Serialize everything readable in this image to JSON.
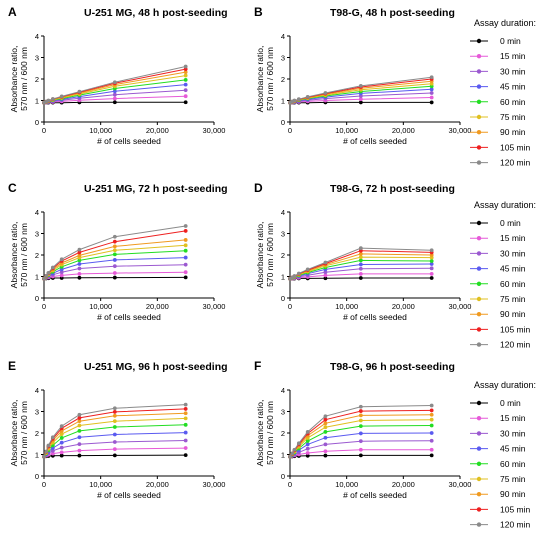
{
  "figure": {
    "legend_title": "Assay duration:",
    "legend_placement": "right",
    "series_styles": [
      {
        "name": "0 min",
        "color": "#000000"
      },
      {
        "name": "15 min",
        "color": "#e65ad8"
      },
      {
        "name": "30 min",
        "color": "#9b59d0"
      },
      {
        "name": "45 min",
        "color": "#5a5af0"
      },
      {
        "name": "60 min",
        "color": "#22dd22"
      },
      {
        "name": "75 min",
        "color": "#e0c020"
      },
      {
        "name": "90 min",
        "color": "#f09a20"
      },
      {
        "name": "105 min",
        "color": "#ee2020"
      },
      {
        "name": "120 min",
        "color": "#8a8a8a"
      }
    ]
  },
  "chart_data": [
    {
      "panel": "A",
      "type": "line",
      "title": "U-251 MG, 48 h post-seeding",
      "xlabel": "# of cells seeded",
      "ylabel": [
        "Absorbance ratio,",
        "570 nm / 600 nm"
      ],
      "xlim": [
        0,
        30000
      ],
      "ylim": [
        0,
        4
      ],
      "xticks": [
        "0",
        "10,000",
        "20,000",
        "30,000"
      ],
      "yticks": [
        "0",
        "1",
        "2",
        "3",
        "4"
      ],
      "x": [
        0,
        390,
        780,
        1560,
        3125,
        6250,
        12500,
        25000
      ],
      "series": [
        {
          "name": "0 min",
          "values": [
            0.9,
            0.9,
            0.9,
            0.9,
            0.9,
            0.91,
            0.92,
            0.92
          ]
        },
        {
          "name": "15 min",
          "values": [
            0.9,
            0.91,
            0.92,
            0.93,
            0.96,
            1.01,
            1.09,
            1.2
          ]
        },
        {
          "name": "30 min",
          "values": [
            0.9,
            0.91,
            0.93,
            0.96,
            1.01,
            1.1,
            1.27,
            1.48
          ]
        },
        {
          "name": "45 min",
          "values": [
            0.9,
            0.92,
            0.95,
            0.99,
            1.05,
            1.18,
            1.43,
            1.74
          ]
        },
        {
          "name": "60 min",
          "values": [
            0.9,
            0.93,
            0.96,
            1.01,
            1.09,
            1.25,
            1.56,
            1.96
          ]
        },
        {
          "name": "75 min",
          "values": [
            0.9,
            0.93,
            0.97,
            1.03,
            1.12,
            1.3,
            1.66,
            2.16
          ]
        },
        {
          "name": "90 min",
          "values": [
            0.9,
            0.94,
            0.98,
            1.05,
            1.15,
            1.35,
            1.74,
            2.32
          ]
        },
        {
          "name": "105 min",
          "values": [
            0.9,
            0.94,
            0.99,
            1.06,
            1.17,
            1.38,
            1.8,
            2.46
          ]
        },
        {
          "name": "120 min",
          "values": [
            0.9,
            0.95,
            1.0,
            1.07,
            1.19,
            1.41,
            1.85,
            2.58
          ]
        }
      ]
    },
    {
      "panel": "B",
      "type": "line",
      "title": "T98-G, 48 h post-seeding",
      "xlabel": "# of cells seeded",
      "ylabel": [
        "Absorbance ratio,",
        "570 nm / 600 nm"
      ],
      "xlim": [
        0,
        30000
      ],
      "ylim": [
        0,
        4
      ],
      "xticks": [
        "0",
        "10,000",
        "20,000",
        "30,000"
      ],
      "yticks": [
        "0",
        "1",
        "2",
        "3",
        "4"
      ],
      "x": [
        0,
        390,
        780,
        1560,
        3125,
        6250,
        12500,
        25000
      ],
      "series": [
        {
          "name": "0 min",
          "values": [
            0.9,
            0.9,
            0.9,
            0.9,
            0.9,
            0.91,
            0.91,
            0.91
          ]
        },
        {
          "name": "15 min",
          "values": [
            0.9,
            0.91,
            0.92,
            0.93,
            0.96,
            1.0,
            1.06,
            1.14
          ]
        },
        {
          "name": "30 min",
          "values": [
            0.9,
            0.92,
            0.93,
            0.96,
            1.01,
            1.09,
            1.21,
            1.35
          ]
        },
        {
          "name": "45 min",
          "values": [
            0.9,
            0.92,
            0.95,
            0.99,
            1.05,
            1.16,
            1.33,
            1.52
          ]
        },
        {
          "name": "60 min",
          "values": [
            0.9,
            0.93,
            0.96,
            1.01,
            1.09,
            1.21,
            1.42,
            1.66
          ]
        },
        {
          "name": "75 min",
          "values": [
            0.9,
            0.93,
            0.97,
            1.03,
            1.11,
            1.25,
            1.5,
            1.78
          ]
        },
        {
          "name": "90 min",
          "values": [
            0.9,
            0.94,
            0.98,
            1.04,
            1.13,
            1.29,
            1.57,
            1.9
          ]
        },
        {
          "name": "105 min",
          "values": [
            0.9,
            0.94,
            0.99,
            1.05,
            1.15,
            1.32,
            1.63,
            2.0
          ]
        },
        {
          "name": "120 min",
          "values": [
            0.9,
            0.95,
            1.0,
            1.06,
            1.17,
            1.35,
            1.68,
            2.08
          ]
        }
      ]
    },
    {
      "panel": "C",
      "type": "line",
      "title": "U-251 MG, 72 h post-seeding",
      "xlabel": "# of cells seeded",
      "ylabel": [
        "Absorbance ratio,",
        "570 nm / 600 nm"
      ],
      "xlim": [
        0,
        30000
      ],
      "ylim": [
        0,
        4
      ],
      "xticks": [
        "0",
        "10,000",
        "20,000",
        "30,000"
      ],
      "yticks": [
        "0",
        "1",
        "2",
        "3",
        "4"
      ],
      "x": [
        0,
        390,
        780,
        1560,
        3125,
        6250,
        12500,
        25000
      ],
      "series": [
        {
          "name": "0 min",
          "values": [
            0.9,
            0.91,
            0.92,
            0.93,
            0.93,
            0.94,
            0.95,
            0.96
          ]
        },
        {
          "name": "15 min",
          "values": [
            0.9,
            0.93,
            0.96,
            1.0,
            1.05,
            1.12,
            1.16,
            1.2
          ]
        },
        {
          "name": "30 min",
          "values": [
            0.9,
            0.95,
            1.0,
            1.08,
            1.2,
            1.37,
            1.48,
            1.55
          ]
        },
        {
          "name": "45 min",
          "values": [
            0.9,
            0.97,
            1.04,
            1.15,
            1.33,
            1.58,
            1.77,
            1.88
          ]
        },
        {
          "name": "60 min",
          "values": [
            0.9,
            0.98,
            1.07,
            1.22,
            1.45,
            1.75,
            2.03,
            2.2
          ]
        },
        {
          "name": "75 min",
          "values": [
            0.9,
            1.0,
            1.1,
            1.28,
            1.55,
            1.88,
            2.22,
            2.45
          ]
        },
        {
          "name": "90 min",
          "values": [
            0.9,
            1.01,
            1.13,
            1.33,
            1.63,
            1.98,
            2.4,
            2.7
          ]
        },
        {
          "name": "105 min",
          "values": [
            0.9,
            1.02,
            1.15,
            1.38,
            1.72,
            2.12,
            2.62,
            3.12
          ]
        },
        {
          "name": "120 min",
          "values": [
            0.9,
            1.03,
            1.17,
            1.42,
            1.8,
            2.25,
            2.85,
            3.35
          ]
        }
      ]
    },
    {
      "panel": "D",
      "type": "line",
      "title": "T98-G, 72 h post-seeding",
      "xlabel": "# of cells seeded",
      "ylabel": [
        "Absorbance ratio,",
        "570 nm / 600 nm"
      ],
      "xlim": [
        0,
        30000
      ],
      "ylim": [
        0,
        4
      ],
      "xticks": [
        "0",
        "10,000",
        "20,000",
        "30,000"
      ],
      "yticks": [
        "0",
        "1",
        "2",
        "3",
        "4"
      ],
      "x": [
        0,
        390,
        780,
        1560,
        3125,
        6250,
        12500,
        25000
      ],
      "series": [
        {
          "name": "0 min",
          "values": [
            0.9,
            0.9,
            0.9,
            0.91,
            0.91,
            0.92,
            0.93,
            0.93
          ]
        },
        {
          "name": "15 min",
          "values": [
            0.9,
            0.91,
            0.92,
            0.94,
            0.98,
            1.05,
            1.12,
            1.12
          ]
        },
        {
          "name": "30 min",
          "values": [
            0.9,
            0.92,
            0.94,
            0.98,
            1.06,
            1.2,
            1.36,
            1.38
          ]
        },
        {
          "name": "45 min",
          "values": [
            0.9,
            0.93,
            0.96,
            1.02,
            1.13,
            1.33,
            1.56,
            1.58
          ]
        },
        {
          "name": "60 min",
          "values": [
            0.9,
            0.93,
            0.97,
            1.05,
            1.18,
            1.42,
            1.75,
            1.72
          ]
        },
        {
          "name": "75 min",
          "values": [
            0.9,
            0.94,
            0.99,
            1.08,
            1.23,
            1.5,
            1.9,
            1.88
          ]
        },
        {
          "name": "90 min",
          "values": [
            0.9,
            0.94,
            1.0,
            1.1,
            1.27,
            1.55,
            2.05,
            2.0
          ]
        },
        {
          "name": "105 min",
          "values": [
            0.9,
            0.95,
            1.01,
            1.12,
            1.3,
            1.6,
            2.2,
            2.12
          ]
        },
        {
          "name": "120 min",
          "values": [
            0.9,
            0.95,
            1.02,
            1.14,
            1.33,
            1.65,
            2.32,
            2.22
          ]
        }
      ]
    },
    {
      "panel": "E",
      "type": "line",
      "title": "U-251 MG, 96 h post-seeding",
      "xlabel": "# of cells seeded",
      "ylabel": [
        "Absorbance ratio,",
        "570 nm / 600 nm"
      ],
      "xlim": [
        0,
        30000
      ],
      "ylim": [
        0,
        4
      ],
      "xticks": [
        "0",
        "10,000",
        "20,000",
        "30,000"
      ],
      "yticks": [
        "0",
        "1",
        "2",
        "3",
        "4"
      ],
      "x": [
        0,
        390,
        780,
        1560,
        3125,
        6250,
        12500,
        25000
      ],
      "series": [
        {
          "name": "0 min",
          "values": [
            0.9,
            0.92,
            0.93,
            0.94,
            0.95,
            0.95,
            0.96,
            0.97
          ]
        },
        {
          "name": "15 min",
          "values": [
            0.9,
            0.95,
            0.99,
            1.04,
            1.1,
            1.18,
            1.25,
            1.3
          ]
        },
        {
          "name": "30 min",
          "values": [
            0.9,
            0.98,
            1.06,
            1.17,
            1.32,
            1.48,
            1.58,
            1.65
          ]
        },
        {
          "name": "45 min",
          "values": [
            0.9,
            1.01,
            1.13,
            1.3,
            1.55,
            1.8,
            1.93,
            2.02
          ]
        },
        {
          "name": "60 min",
          "values": [
            0.9,
            1.04,
            1.2,
            1.43,
            1.77,
            2.1,
            2.28,
            2.38
          ]
        },
        {
          "name": "75 min",
          "values": [
            0.9,
            1.07,
            1.27,
            1.55,
            1.95,
            2.35,
            2.55,
            2.68
          ]
        },
        {
          "name": "90 min",
          "values": [
            0.9,
            1.1,
            1.33,
            1.65,
            2.1,
            2.55,
            2.8,
            2.92
          ]
        },
        {
          "name": "105 min",
          "values": [
            0.9,
            1.12,
            1.38,
            1.73,
            2.22,
            2.7,
            2.98,
            3.12
          ]
        },
        {
          "name": "120 min",
          "values": [
            0.9,
            1.14,
            1.42,
            1.8,
            2.32,
            2.85,
            3.15,
            3.32
          ]
        }
      ]
    },
    {
      "panel": "F",
      "type": "line",
      "title": "T98-G, 96 h post-seeding",
      "xlabel": "# of cells seeded",
      "ylabel": [
        "Absorbance ratio,",
        "570 nm / 600 nm"
      ],
      "xlim": [
        0,
        30000
      ],
      "ylim": [
        0,
        4
      ],
      "xticks": [
        "0",
        "10,000",
        "20,000",
        "30,000"
      ],
      "yticks": [
        "0",
        "1",
        "2",
        "3",
        "4"
      ],
      "x": [
        0,
        390,
        780,
        1560,
        3125,
        6250,
        12500,
        25000
      ],
      "series": [
        {
          "name": "0 min",
          "values": [
            0.9,
            0.91,
            0.92,
            0.93,
            0.94,
            0.95,
            0.96,
            0.96
          ]
        },
        {
          "name": "15 min",
          "values": [
            0.9,
            0.93,
            0.96,
            1.0,
            1.07,
            1.15,
            1.22,
            1.22
          ]
        },
        {
          "name": "30 min",
          "values": [
            0.9,
            0.95,
            1.0,
            1.1,
            1.27,
            1.47,
            1.62,
            1.64
          ]
        },
        {
          "name": "45 min",
          "values": [
            0.9,
            0.97,
            1.05,
            1.2,
            1.47,
            1.78,
            1.98,
            2.0
          ]
        },
        {
          "name": "60 min",
          "values": [
            0.9,
            0.99,
            1.09,
            1.28,
            1.63,
            2.05,
            2.32,
            2.35
          ]
        },
        {
          "name": "75 min",
          "values": [
            0.9,
            1.01,
            1.13,
            1.36,
            1.77,
            2.27,
            2.58,
            2.62
          ]
        },
        {
          "name": "90 min",
          "values": [
            0.9,
            1.02,
            1.16,
            1.42,
            1.88,
            2.45,
            2.82,
            2.85
          ]
        },
        {
          "name": "105 min",
          "values": [
            0.9,
            1.03,
            1.19,
            1.47,
            1.97,
            2.62,
            3.02,
            3.05
          ]
        },
        {
          "name": "120 min",
          "values": [
            0.9,
            1.05,
            1.22,
            1.52,
            2.05,
            2.78,
            3.22,
            3.28
          ]
        }
      ]
    }
  ]
}
